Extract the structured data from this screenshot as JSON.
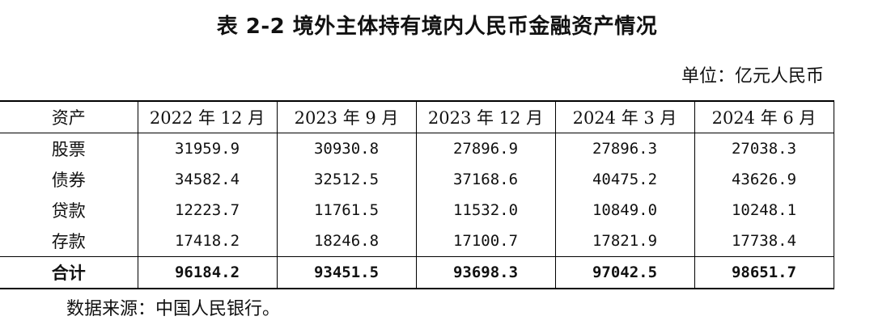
{
  "title": "表 2-2  境外主体持有境内人民币金融资产情况",
  "unit": "单位：亿元人民币",
  "table": {
    "headers": [
      "资产",
      "2022 年 12 月",
      "2023 年 9 月",
      "2023 年 12 月",
      "2024 年 3 月",
      "2024 年 6 月"
    ],
    "rows": [
      {
        "label": "股票",
        "values": [
          "31959.9",
          "30930.8",
          "27896.9",
          "27896.3",
          "27038.3"
        ]
      },
      {
        "label": "债券",
        "values": [
          "34582.4",
          "32512.5",
          "37168.6",
          "40475.2",
          "43626.9"
        ]
      },
      {
        "label": "贷款",
        "values": [
          "12223.7",
          "11761.5",
          "11532.0",
          "10849.0",
          "10248.1"
        ]
      },
      {
        "label": "存款",
        "values": [
          "17418.2",
          "18246.8",
          "17100.7",
          "17821.9",
          "17738.4"
        ]
      },
      {
        "label": "合计",
        "values": [
          "96184.2",
          "93451.5",
          "93698.3",
          "97042.5",
          "98651.7"
        ]
      }
    ]
  },
  "source": "数据来源：中国人民银行。"
}
